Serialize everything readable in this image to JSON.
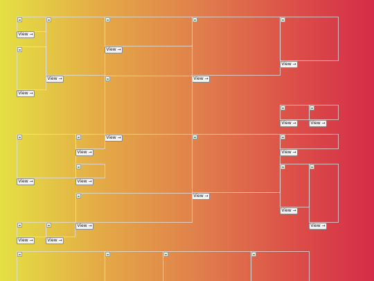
{
  "gallery": {
    "view_label": "View →",
    "tile_icon": "broken-image-icon",
    "tile_count": 33
  }
}
